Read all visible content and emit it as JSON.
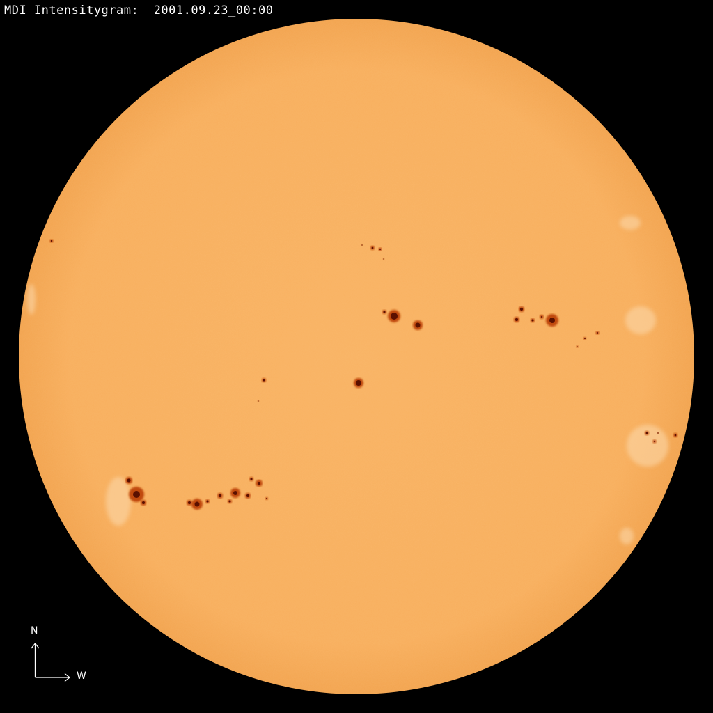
{
  "title": "MDI Intensitygram:  2001.09.23_00:00",
  "compass": {
    "north": "N",
    "west": "W"
  },
  "colors": {
    "background": "#000000",
    "disk_center": "#f9b262",
    "disk_limb": "#f2a650",
    "umbra": "#5a1000",
    "penumbra": "#c0480e",
    "faculae": "#fbd7a8"
  }
}
